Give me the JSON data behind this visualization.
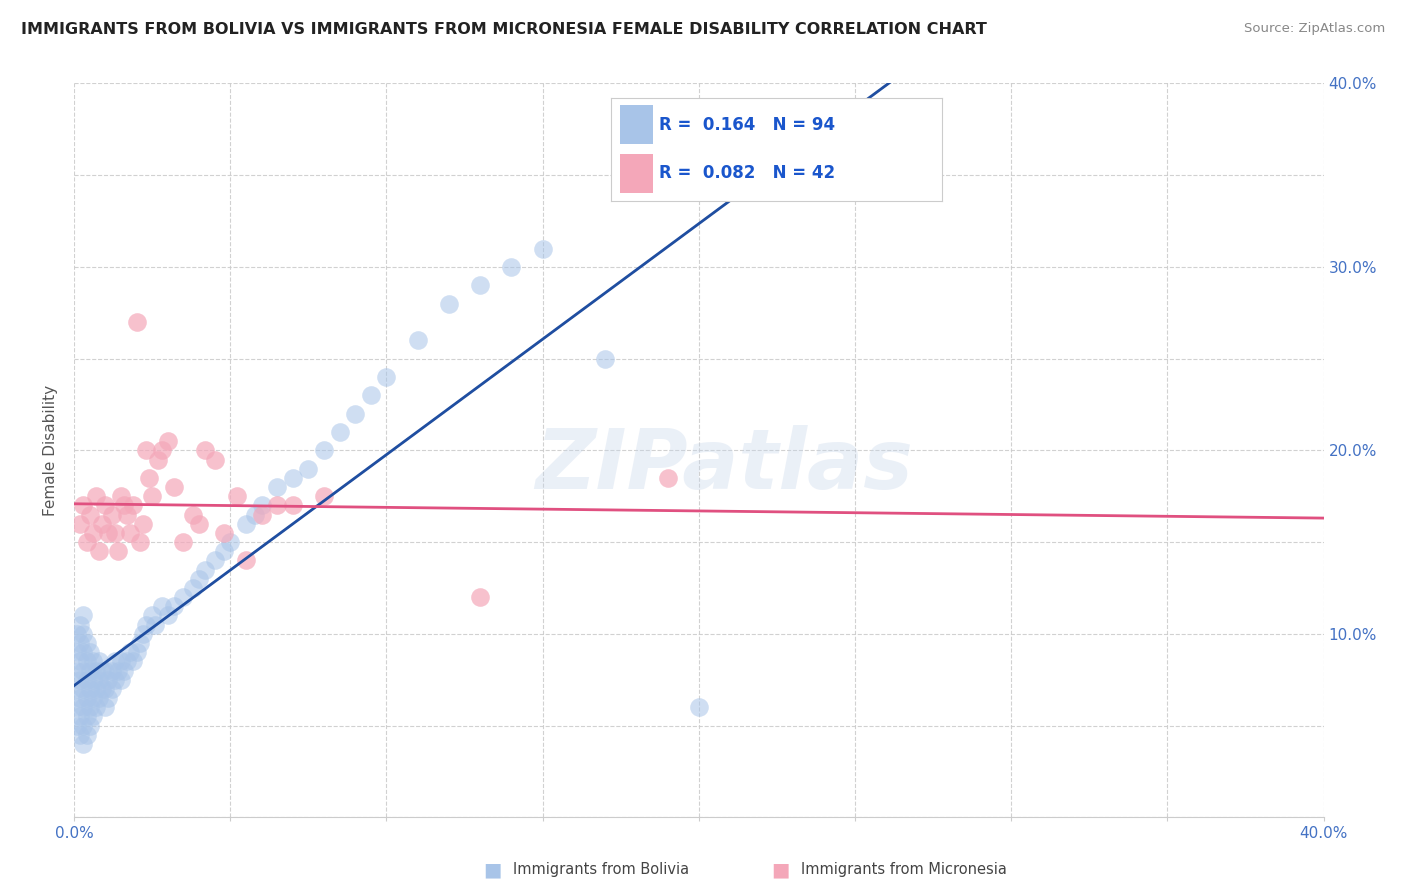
{
  "title": "IMMIGRANTS FROM BOLIVIA VS IMMIGRANTS FROM MICRONESIA FEMALE DISABILITY CORRELATION CHART",
  "source": "Source: ZipAtlas.com",
  "ylabel": "Female Disability",
  "xlim": [
    0.0,
    0.4
  ],
  "ylim": [
    0.0,
    0.4
  ],
  "x_ticks": [
    0.0,
    0.05,
    0.1,
    0.15,
    0.2,
    0.25,
    0.3,
    0.35,
    0.4
  ],
  "y_ticks": [
    0.0,
    0.05,
    0.1,
    0.15,
    0.2,
    0.25,
    0.3,
    0.35,
    0.4
  ],
  "bolivia_R": 0.164,
  "bolivia_N": 94,
  "micronesia_R": 0.082,
  "micronesia_N": 42,
  "bolivia_color": "#a8c4e8",
  "micronesia_color": "#f4a7b9",
  "bolivia_line_color": "#1f4ea1",
  "micronesia_line_color": "#e05080",
  "dashed_line_color": "#aaaaaa",
  "watermark": "ZIPatlas",
  "legend_R_color": "#1a56cc",
  "legend_N_color": "#cc2244",
  "bolivia_scatter_x": [
    0.001,
    0.001,
    0.001,
    0.001,
    0.001,
    0.001,
    0.002,
    0.002,
    0.002,
    0.002,
    0.002,
    0.002,
    0.002,
    0.003,
    0.003,
    0.003,
    0.003,
    0.003,
    0.003,
    0.003,
    0.003,
    0.004,
    0.004,
    0.004,
    0.004,
    0.004,
    0.004,
    0.005,
    0.005,
    0.005,
    0.005,
    0.005,
    0.006,
    0.006,
    0.006,
    0.006,
    0.007,
    0.007,
    0.007,
    0.008,
    0.008,
    0.008,
    0.009,
    0.009,
    0.01,
    0.01,
    0.01,
    0.011,
    0.011,
    0.012,
    0.012,
    0.013,
    0.013,
    0.014,
    0.015,
    0.015,
    0.016,
    0.017,
    0.018,
    0.019,
    0.02,
    0.021,
    0.022,
    0.023,
    0.025,
    0.026,
    0.028,
    0.03,
    0.032,
    0.035,
    0.038,
    0.04,
    0.042,
    0.045,
    0.048,
    0.05,
    0.055,
    0.058,
    0.06,
    0.065,
    0.07,
    0.075,
    0.08,
    0.085,
    0.09,
    0.095,
    0.1,
    0.11,
    0.12,
    0.13,
    0.14,
    0.15,
    0.17,
    0.2
  ],
  "bolivia_scatter_y": [
    0.05,
    0.06,
    0.07,
    0.08,
    0.09,
    0.1,
    0.045,
    0.055,
    0.065,
    0.075,
    0.085,
    0.095,
    0.105,
    0.04,
    0.05,
    0.06,
    0.07,
    0.08,
    0.09,
    0.1,
    0.11,
    0.045,
    0.055,
    0.065,
    0.075,
    0.085,
    0.095,
    0.05,
    0.06,
    0.07,
    0.08,
    0.09,
    0.055,
    0.065,
    0.075,
    0.085,
    0.06,
    0.07,
    0.08,
    0.065,
    0.075,
    0.085,
    0.07,
    0.08,
    0.06,
    0.07,
    0.08,
    0.065,
    0.075,
    0.07,
    0.08,
    0.075,
    0.085,
    0.08,
    0.075,
    0.085,
    0.08,
    0.085,
    0.09,
    0.085,
    0.09,
    0.095,
    0.1,
    0.105,
    0.11,
    0.105,
    0.115,
    0.11,
    0.115,
    0.12,
    0.125,
    0.13,
    0.135,
    0.14,
    0.145,
    0.15,
    0.16,
    0.165,
    0.17,
    0.18,
    0.185,
    0.19,
    0.2,
    0.21,
    0.22,
    0.23,
    0.24,
    0.26,
    0.28,
    0.29,
    0.3,
    0.31,
    0.25,
    0.06
  ],
  "micronesia_scatter_x": [
    0.002,
    0.003,
    0.004,
    0.005,
    0.006,
    0.007,
    0.008,
    0.009,
    0.01,
    0.011,
    0.012,
    0.013,
    0.014,
    0.015,
    0.016,
    0.017,
    0.018,
    0.019,
    0.02,
    0.021,
    0.022,
    0.023,
    0.024,
    0.025,
    0.027,
    0.028,
    0.03,
    0.032,
    0.035,
    0.038,
    0.04,
    0.042,
    0.045,
    0.048,
    0.052,
    0.055,
    0.06,
    0.065,
    0.07,
    0.08,
    0.13,
    0.19
  ],
  "micronesia_scatter_y": [
    0.16,
    0.17,
    0.15,
    0.165,
    0.155,
    0.175,
    0.145,
    0.16,
    0.17,
    0.155,
    0.165,
    0.155,
    0.145,
    0.175,
    0.17,
    0.165,
    0.155,
    0.17,
    0.27,
    0.15,
    0.16,
    0.2,
    0.185,
    0.175,
    0.195,
    0.2,
    0.205,
    0.18,
    0.15,
    0.165,
    0.16,
    0.2,
    0.195,
    0.155,
    0.175,
    0.14,
    0.165,
    0.17,
    0.17,
    0.175,
    0.12,
    0.185
  ]
}
